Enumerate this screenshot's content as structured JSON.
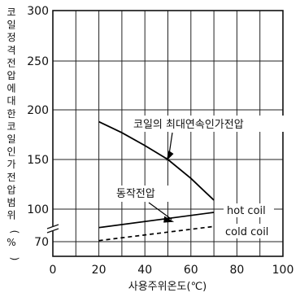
{
  "chart_data": {
    "type": "line",
    "xlabel": "사용주위온도(℃)",
    "ylabel_chars": [
      "코",
      "일",
      "정",
      "격",
      "전",
      "압",
      "에",
      "대",
      "한",
      "코",
      "일",
      "인",
      "가",
      "전",
      "압",
      "범",
      "위",
      "(",
      "%",
      ")"
    ],
    "xlim": [
      0,
      100
    ],
    "ylim_display": [
      70,
      300
    ],
    "x_ticks": [
      "0",
      "20",
      "40",
      "60",
      "80",
      "100"
    ],
    "y_ticks": [
      "300",
      "250",
      "200",
      "150",
      "100",
      "70"
    ],
    "axis_break": true,
    "grid": true,
    "series": [
      {
        "name": "코일의 최대연속인가전압",
        "style": "solid",
        "x": [
          20,
          30,
          40,
          50,
          60,
          70
        ],
        "y": [
          188,
          177,
          164,
          150,
          131,
          109
        ]
      },
      {
        "name": "hot coil",
        "style": "solid",
        "x": [
          20,
          70
        ],
        "y": [
          83,
          97
        ]
      },
      {
        "name": "cold coil",
        "style": "dashed",
        "x": [
          20,
          70
        ],
        "y": [
          71,
          84
        ]
      }
    ],
    "annotations": [
      {
        "text": "코일의 최대연속인가전압",
        "points_to": [
          50,
          150
        ]
      },
      {
        "text": "동작전압",
        "points_to": [
          52,
          92
        ]
      },
      {
        "text": "hot  coil"
      },
      {
        "text": "cold  coil"
      }
    ]
  }
}
